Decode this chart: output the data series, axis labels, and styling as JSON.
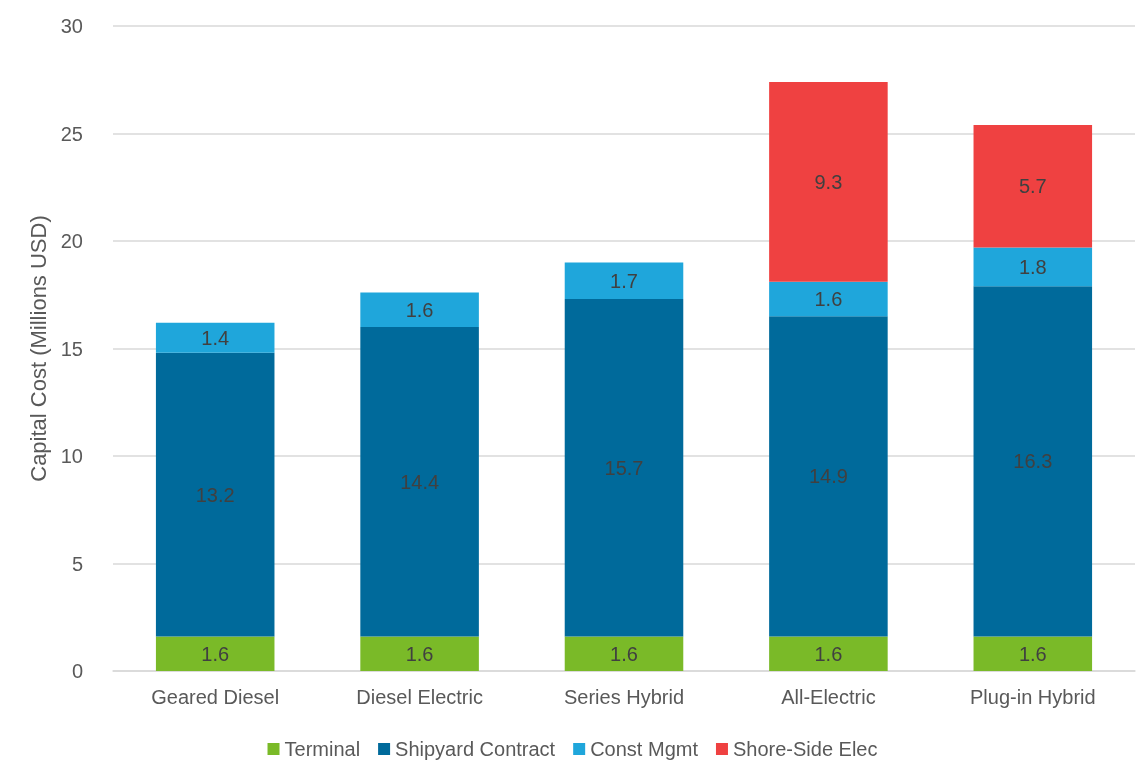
{
  "chart_data": {
    "type": "bar",
    "stacked": true,
    "ylabel": "Capital Cost (Millions USD)",
    "categories": [
      "Geared Diesel",
      "Diesel Electric",
      "Series Hybrid",
      "All-Electric",
      "Plug-in Hybrid"
    ],
    "series": [
      {
        "name": "Terminal",
        "color": "#7aba28",
        "values": [
          1.6,
          1.6,
          1.6,
          1.6,
          1.6
        ]
      },
      {
        "name": "Shipyard Contract",
        "color": "#006a9b",
        "values": [
          13.2,
          14.4,
          15.7,
          14.9,
          16.3
        ]
      },
      {
        "name": "Const Mgmt",
        "color": "#1fa6db",
        "values": [
          1.4,
          1.6,
          1.7,
          1.6,
          1.8
        ]
      },
      {
        "name": "Shore-Side Elec",
        "color": "#ef4141",
        "values": [
          null,
          null,
          null,
          9.3,
          5.7
        ]
      }
    ],
    "ylim": [
      0,
      30
    ],
    "yticks": [
      0,
      5,
      10,
      15,
      20,
      25,
      30
    ],
    "grid": "y",
    "legend": "bottom",
    "data_labels": true
  }
}
